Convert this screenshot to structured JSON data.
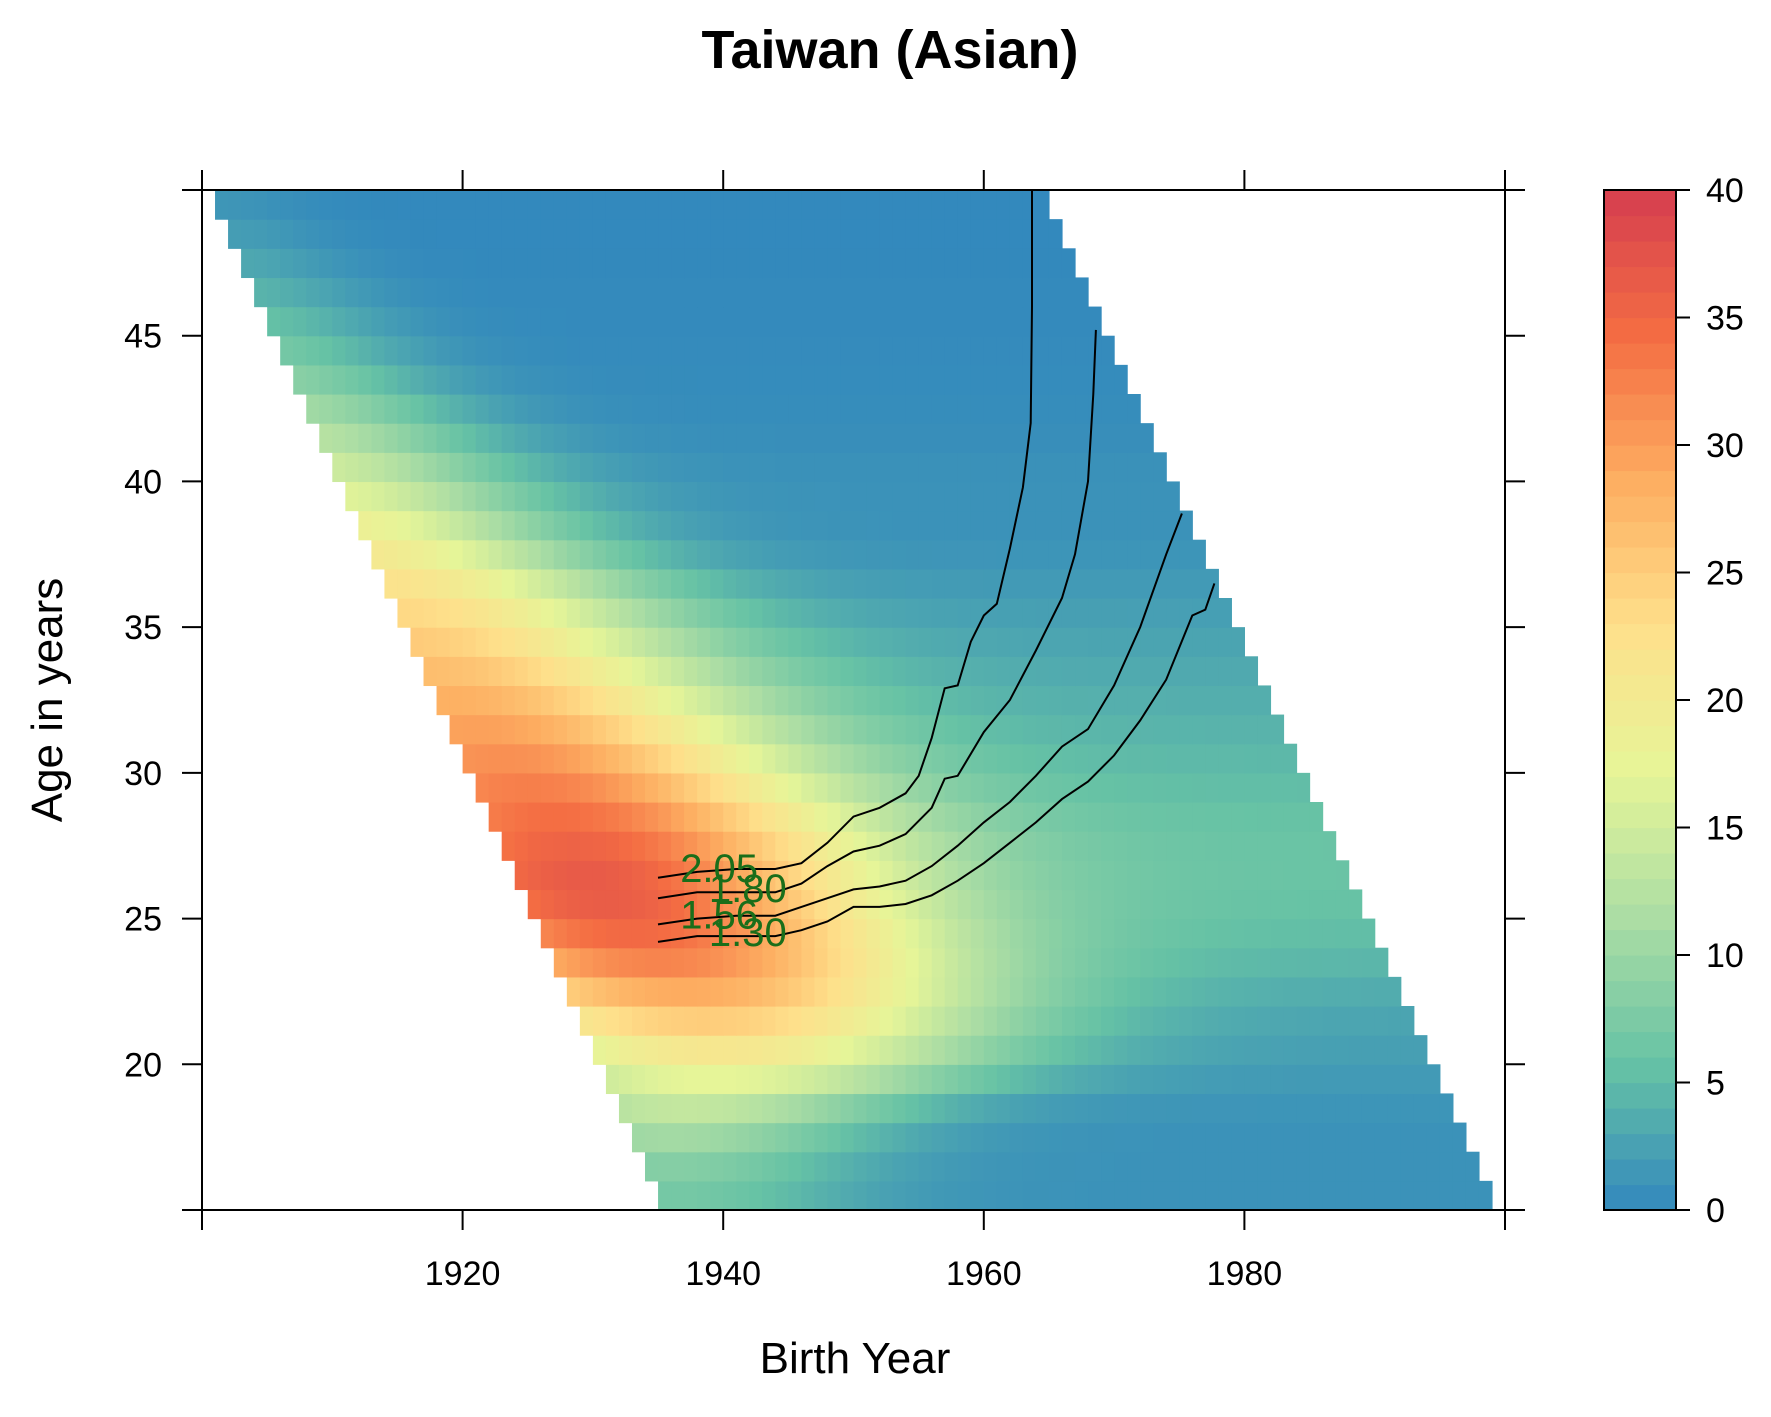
{
  "chart_data": {
    "type": "heatmap",
    "title": "Taiwan (Asian)",
    "xlabel": "Birth Year",
    "ylabel": "Age in years",
    "xlim": [
      1900,
      2000
    ],
    "ylim": [
      15,
      50
    ],
    "x_ticks": [
      1920,
      1940,
      1960,
      1980
    ],
    "y_ticks": [
      20,
      25,
      30,
      35,
      40,
      45
    ],
    "observation_window": {
      "period_start": 1950,
      "period_end": 2014
    },
    "colorbar": {
      "range": [
        0,
        40
      ],
      "ticks": [
        0,
        5,
        10,
        15,
        20,
        25,
        30,
        35,
        40
      ],
      "palette": [
        "#3288bd",
        "#66c2a5",
        "#abdda4",
        "#e6f598",
        "#fee08b",
        "#fdae61",
        "#f46d43",
        "#d53e4f"
      ]
    },
    "rate_surface": [
      {
        "age": 16,
        "peak_value": 7,
        "peak_cohort": 1936,
        "width": 14,
        "floor": 1
      },
      {
        "age": 18,
        "peak_value": 12,
        "peak_cohort": 1936,
        "width": 16,
        "floor": 1
      },
      {
        "age": 20,
        "peak_value": 19,
        "peak_cohort": 1940,
        "width": 20,
        "floor": 2
      },
      {
        "age": 22,
        "peak_value": 27,
        "peak_cohort": 1938,
        "width": 22,
        "floor": 3
      },
      {
        "age": 24,
        "peak_value": 34,
        "peak_cohort": 1934,
        "width": 22,
        "floor": 5
      },
      {
        "age": 26,
        "peak_value": 37,
        "peak_cohort": 1930,
        "width": 22,
        "floor": 6
      },
      {
        "age": 28,
        "peak_value": 35,
        "peak_cohort": 1928,
        "width": 22,
        "floor": 6
      },
      {
        "age": 30,
        "peak_value": 32,
        "peak_cohort": 1924,
        "width": 22,
        "floor": 5
      },
      {
        "age": 32,
        "peak_value": 29,
        "peak_cohort": 1920,
        "width": 22,
        "floor": 4
      },
      {
        "age": 34,
        "peak_value": 26,
        "peak_cohort": 1916,
        "width": 22,
        "floor": 3
      },
      {
        "age": 36,
        "peak_value": 23,
        "peak_cohort": 1914,
        "width": 20,
        "floor": 2
      },
      {
        "age": 38,
        "peak_value": 20,
        "peak_cohort": 1910,
        "width": 18,
        "floor": 1
      },
      {
        "age": 40,
        "peak_value": 16,
        "peak_cohort": 1908,
        "width": 16,
        "floor": 1
      },
      {
        "age": 42,
        "peak_value": 12,
        "peak_cohort": 1906,
        "width": 14,
        "floor": 0.5
      },
      {
        "age": 44,
        "peak_value": 8,
        "peak_cohort": 1904,
        "width": 12,
        "floor": 0.3
      },
      {
        "age": 46,
        "peak_value": 5,
        "peak_cohort": 1903,
        "width": 10,
        "floor": 0.2
      },
      {
        "age": 48,
        "peak_value": 2.5,
        "peak_cohort": 1902,
        "width": 8,
        "floor": 0.1
      },
      {
        "age": 50,
        "peak_value": 1,
        "peak_cohort": 1901,
        "width": 6,
        "floor": 0.1
      }
    ],
    "contours": [
      {
        "label": "2.05",
        "points": [
          [
            1935,
            26.4
          ],
          [
            1938,
            26.6
          ],
          [
            1941,
            26.7
          ],
          [
            1944,
            26.7
          ],
          [
            1946,
            26.9
          ],
          [
            1948,
            27.6
          ],
          [
            1950,
            28.5
          ],
          [
            1952,
            28.8
          ],
          [
            1954,
            29.3
          ],
          [
            1955,
            29.9
          ],
          [
            1956,
            31.2
          ],
          [
            1957,
            32.9
          ],
          [
            1958,
            33.0
          ],
          [
            1959,
            34.5
          ],
          [
            1960,
            35.4
          ],
          [
            1961,
            35.8
          ],
          [
            1962,
            37.7
          ],
          [
            1963,
            39.8
          ],
          [
            1963.6,
            42
          ],
          [
            1963.7,
            46
          ],
          [
            1963.7,
            50
          ]
        ]
      },
      {
        "label": "1.80",
        "points": [
          [
            1935,
            25.7
          ],
          [
            1938,
            25.9
          ],
          [
            1941,
            25.9
          ],
          [
            1944,
            25.9
          ],
          [
            1946,
            26.2
          ],
          [
            1948,
            26.8
          ],
          [
            1950,
            27.3
          ],
          [
            1952,
            27.5
          ],
          [
            1954,
            27.9
          ],
          [
            1956,
            28.8
          ],
          [
            1957,
            29.8
          ],
          [
            1958,
            29.9
          ],
          [
            1960,
            31.4
          ],
          [
            1962,
            32.5
          ],
          [
            1964,
            34.2
          ],
          [
            1966,
            36.0
          ],
          [
            1967,
            37.5
          ],
          [
            1968,
            40.0
          ],
          [
            1968.4,
            43
          ],
          [
            1968.6,
            45.2
          ]
        ]
      },
      {
        "label": "1.56",
        "points": [
          [
            1935,
            24.8
          ],
          [
            1938,
            25.0
          ],
          [
            1941,
            25.1
          ],
          [
            1944,
            25.1
          ],
          [
            1946,
            25.4
          ],
          [
            1948,
            25.7
          ],
          [
            1950,
            26.0
          ],
          [
            1952,
            26.1
          ],
          [
            1954,
            26.3
          ],
          [
            1956,
            26.8
          ],
          [
            1958,
            27.5
          ],
          [
            1960,
            28.3
          ],
          [
            1962,
            29.0
          ],
          [
            1964,
            29.9
          ],
          [
            1966,
            30.9
          ],
          [
            1968,
            31.5
          ],
          [
            1970,
            33.0
          ],
          [
            1972,
            35.0
          ],
          [
            1974,
            37.5
          ],
          [
            1975.2,
            38.9
          ]
        ]
      },
      {
        "label": "1.30",
        "points": [
          [
            1935,
            24.2
          ],
          [
            1938,
            24.4
          ],
          [
            1941,
            24.4
          ],
          [
            1944,
            24.4
          ],
          [
            1946,
            24.6
          ],
          [
            1948,
            24.9
          ],
          [
            1950,
            25.4
          ],
          [
            1952,
            25.4
          ],
          [
            1954,
            25.5
          ],
          [
            1956,
            25.8
          ],
          [
            1958,
            26.3
          ],
          [
            1960,
            26.9
          ],
          [
            1962,
            27.6
          ],
          [
            1964,
            28.3
          ],
          [
            1966,
            29.1
          ],
          [
            1968,
            29.7
          ],
          [
            1970,
            30.6
          ],
          [
            1972,
            31.8
          ],
          [
            1974,
            33.2
          ],
          [
            1976,
            35.4
          ],
          [
            1977,
            35.6
          ],
          [
            1977.7,
            36.5
          ]
        ]
      }
    ]
  }
}
